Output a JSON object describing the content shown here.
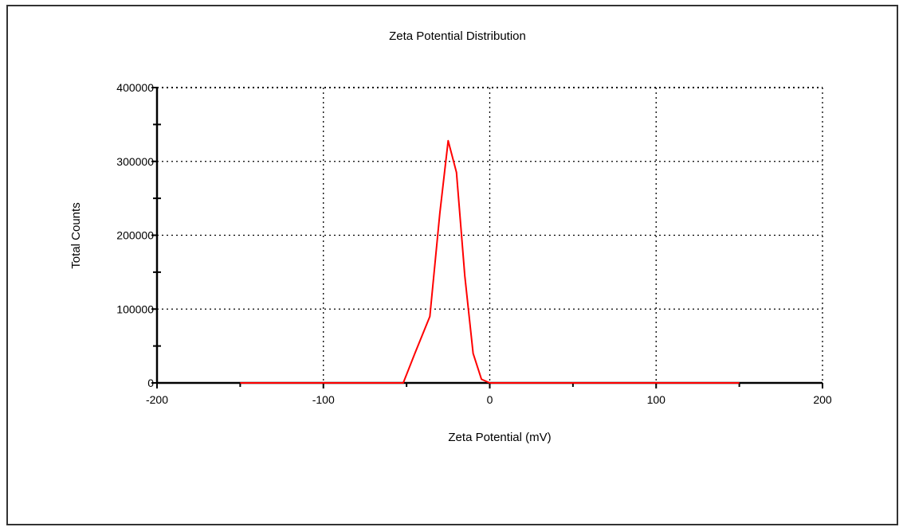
{
  "chart_data": {
    "type": "line",
    "title": "Zeta Potential Distribution",
    "xlabel": "Zeta Potential (mV)",
    "ylabel": "Total Counts",
    "xlim": [
      -200,
      200
    ],
    "ylim": [
      0,
      400000
    ],
    "xticks": [
      -200,
      -100,
      0,
      100,
      200
    ],
    "yticks": [
      0,
      100000,
      200000,
      300000,
      400000
    ],
    "xtick_labels": [
      "-200",
      "-100",
      "0",
      "100",
      "200"
    ],
    "ytick_labels": [
      "0",
      "100000",
      "200000",
      "300000",
      "400000"
    ],
    "grid": true,
    "series": [
      {
        "color": "#ff0000",
        "x": [
          -150,
          -60,
          -52,
          -45,
          -36,
          -30,
          -25,
          -20,
          -15,
          -10,
          -5,
          0,
          50,
          100,
          150
        ],
        "y": [
          0,
          0,
          0,
          40000,
          90000,
          230000,
          328000,
          285000,
          145000,
          40000,
          5000,
          0,
          0,
          0,
          0
        ]
      }
    ]
  }
}
